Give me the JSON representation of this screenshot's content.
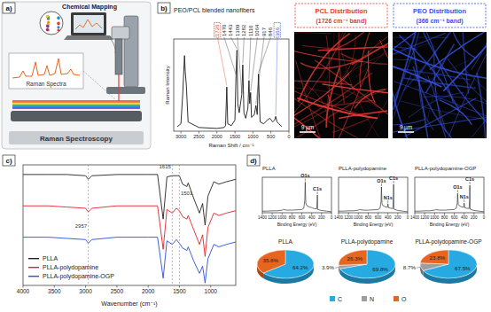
{
  "panel_labels": [
    "a)",
    "b)",
    "c)",
    "d)"
  ],
  "diagram": {
    "chemical_mapping": "Chemical Mapping",
    "raman_spectra": "Raman Spectra",
    "title": "Raman Spectroscopy"
  },
  "maps": [
    {
      "title": "PCL Distribution",
      "band": "(1726 cm⁻¹ band)",
      "color": "#e53935",
      "scale_bar": "9 µm"
    },
    {
      "title": "PEO Distribution",
      "band": "(366 cm⁻¹ band)",
      "color": "#3552e6",
      "scale_bar": "9 µm"
    }
  ],
  "chart_data": [
    {
      "type": "line",
      "title": "PEO/PCL blended nanofibers",
      "x_label": "Raman Shift / cm⁻¹",
      "y_label": "Raman Intensity",
      "xlim": [
        3200,
        0
      ],
      "xticks": [
        3000,
        2500,
        2000,
        1500,
        1000,
        500,
        0
      ],
      "ylim": [
        0,
        100
      ],
      "tick_labels": "x",
      "color": "#1a1a1a",
      "x": [
        3100,
        3000,
        2950,
        2900,
        2880,
        2850,
        2800,
        2500,
        2000,
        1800,
        1760,
        1726,
        1700,
        1600,
        1500,
        1470,
        1443,
        1420,
        1380,
        1309,
        1282,
        1250,
        1200,
        1140,
        1110,
        1090,
        1064,
        1040,
        960,
        917,
        880,
        846,
        800,
        700,
        600,
        530,
        450,
        400,
        366,
        330,
        280,
        200
      ],
      "values": [
        5,
        8,
        40,
        82,
        65,
        50,
        10,
        4,
        3,
        4,
        6,
        48,
        8,
        6,
        12,
        60,
        88,
        30,
        20,
        40,
        72,
        20,
        14,
        25,
        55,
        30,
        42,
        15,
        18,
        28,
        18,
        62,
        10,
        8,
        12,
        14,
        10,
        12,
        16,
        10,
        8,
        5
      ],
      "annotations": [
        {
          "x": 1726,
          "y": 48,
          "text": "1726",
          "color": "#e53935"
        },
        {
          "x": 1470,
          "y": 60,
          "text": "1470"
        },
        {
          "x": 1443,
          "y": 88,
          "text": "1443"
        },
        {
          "x": 1309,
          "y": 40,
          "text": "1309"
        },
        {
          "x": 1282,
          "y": 72,
          "text": "1282"
        },
        {
          "x": 1110,
          "y": 55,
          "text": "1110"
        },
        {
          "x": 1064,
          "y": 42,
          "text": "1064"
        },
        {
          "x": 917,
          "y": 28,
          "text": "917"
        },
        {
          "x": 846,
          "y": 62,
          "text": "846"
        },
        {
          "x": 366,
          "y": 16,
          "text": "366",
          "color": "#3552e6"
        }
      ]
    },
    {
      "type": "line",
      "x_label": "Wavenumber (cm⁻¹)",
      "xlim": [
        4000,
        600
      ],
      "xticks": [
        4000,
        3500,
        3000,
        2500,
        2000,
        1500,
        1000
      ],
      "ylim": [
        0,
        100
      ],
      "tick_labels": "x",
      "legend": "lower left",
      "x": [
        4000,
        3600,
        3300,
        3000,
        2957,
        2900,
        2500,
        2000,
        1850,
        1760,
        1700,
        1615,
        1550,
        1501,
        1450,
        1380,
        1360,
        1270,
        1180,
        1130,
        1090,
        1045,
        950,
        870,
        750,
        600
      ],
      "series": [
        {
          "name": "PLLA",
          "color": "#222222",
          "values": [
            92,
            92,
            92,
            91,
            88,
            91,
            92,
            92,
            92,
            55,
            90,
            91,
            91,
            91,
            84,
            82,
            85,
            72,
            60,
            68,
            50,
            74,
            86,
            84,
            86,
            88
          ]
        },
        {
          "name": "PLLA-polydopamine",
          "color": "#e0222a",
          "values": [
            66,
            66,
            65,
            64,
            61,
            64,
            66,
            66,
            66,
            30,
            63,
            60,
            64,
            62,
            57,
            55,
            58,
            46,
            34,
            42,
            24,
            48,
            60,
            58,
            60,
            62
          ]
        },
        {
          "name": "PLLA-polydopamine-OGP",
          "color": "#2b4fd8",
          "values": [
            40,
            40,
            39,
            38,
            35,
            38,
            40,
            40,
            40,
            6,
            37,
            34,
            38,
            35,
            31,
            29,
            32,
            20,
            10,
            16,
            2,
            22,
            34,
            32,
            34,
            36
          ]
        }
      ],
      "annotations": [
        {
          "x": 2957,
          "y": 48,
          "text": "2957"
        },
        {
          "x": 1615,
          "y": 97,
          "text": "1615"
        },
        {
          "x": 1501,
          "y": 75,
          "text": "1501"
        }
      ]
    },
    {
      "type": "line",
      "title": "PLLA",
      "x_label": "Binding Energy (eV)",
      "xlim": [
        1400,
        0
      ],
      "xticks": [
        1400,
        1200,
        1000,
        800,
        600,
        400,
        200,
        0
      ],
      "ylim": [
        0,
        110
      ],
      "tick_labels": "x",
      "color": "#333333",
      "x": [
        1400,
        1300,
        1200,
        1100,
        1000,
        980,
        900,
        800,
        700,
        600,
        560,
        540,
        532,
        520,
        500,
        450,
        410,
        400,
        390,
        350,
        300,
        290,
        285,
        280,
        200,
        100,
        0
      ],
      "values": [
        5,
        5,
        6,
        6,
        8,
        10,
        8,
        8,
        9,
        10,
        14,
        40,
        95,
        30,
        22,
        18,
        16,
        16,
        15,
        13,
        12,
        30,
        55,
        10,
        7,
        5,
        3
      ],
      "annotations": [
        {
          "x": 532,
          "y": 95,
          "text": "O1s"
        },
        {
          "x": 285,
          "y": 55,
          "text": "C1s"
        }
      ]
    },
    {
      "type": "line",
      "title": "PLLA-polydopamine",
      "x_label": "Binding Energy (eV)",
      "xlim": [
        1400,
        0
      ],
      "xticks": [
        1400,
        1200,
        1000,
        800,
        600,
        400,
        200,
        0
      ],
      "ylim": [
        0,
        110
      ],
      "tick_labels": "x",
      "color": "#333333",
      "x": [
        1400,
        1300,
        1200,
        1100,
        1000,
        980,
        900,
        800,
        700,
        600,
        560,
        540,
        532,
        520,
        500,
        450,
        410,
        400,
        390,
        350,
        300,
        290,
        285,
        280,
        200,
        100,
        0
      ],
      "values": [
        5,
        5,
        6,
        6,
        8,
        10,
        8,
        8,
        9,
        10,
        14,
        35,
        80,
        28,
        22,
        18,
        17,
        28,
        16,
        14,
        13,
        45,
        88,
        11,
        7,
        5,
        3
      ],
      "annotations": [
        {
          "x": 532,
          "y": 80,
          "text": "O1s"
        },
        {
          "x": 400,
          "y": 28,
          "text": "N1s"
        },
        {
          "x": 285,
          "y": 88,
          "text": "C1s"
        }
      ]
    },
    {
      "type": "line",
      "title": "PLLA-polydopamine-OGP",
      "x_label": "Binding Energy (eV)",
      "xlim": [
        1400,
        0
      ],
      "xticks": [
        1400,
        1200,
        1000,
        800,
        600,
        400,
        200,
        0
      ],
      "ylim": [
        0,
        110
      ],
      "tick_labels": "x",
      "color": "#333333",
      "x": [
        1400,
        1300,
        1200,
        1100,
        1000,
        980,
        900,
        800,
        700,
        600,
        560,
        540,
        532,
        520,
        500,
        450,
        410,
        400,
        390,
        350,
        300,
        290,
        285,
        280,
        200,
        100,
        0
      ],
      "values": [
        5,
        5,
        6,
        6,
        8,
        10,
        8,
        8,
        9,
        10,
        14,
        30,
        60,
        26,
        22,
        18,
        17,
        30,
        16,
        14,
        13,
        40,
        85,
        11,
        7,
        5,
        3
      ],
      "annotations": [
        {
          "x": 532,
          "y": 60,
          "text": "O1s"
        },
        {
          "x": 400,
          "y": 30,
          "text": "N1s"
        },
        {
          "x": 285,
          "y": 85,
          "text": "C1s"
        }
      ]
    },
    {
      "type": "pie",
      "title": "PLLA",
      "categories": [
        "C",
        "O"
      ],
      "values": [
        64.2,
        35.8
      ],
      "value_labels": [
        "64.2%",
        "35.8%"
      ],
      "colors": [
        "#27a9e1",
        "#e8651f"
      ],
      "data_labels": true
    },
    {
      "type": "pie",
      "title": "PLLA-polydopamine",
      "categories": [
        "C",
        "N",
        "O"
      ],
      "values": [
        69.8,
        3.9,
        26.3
      ],
      "value_labels": [
        "69.8%",
        "3.9%",
        "26.3%"
      ],
      "colors": [
        "#27a9e1",
        "#9e9e9e",
        "#e8651f"
      ],
      "data_labels": true
    },
    {
      "type": "pie",
      "title": "PLLA-polydopamine-OGP",
      "categories": [
        "C",
        "N",
        "O"
      ],
      "values": [
        67.5,
        8.7,
        23.8
      ],
      "value_labels": [
        "67.5%",
        "8.7%",
        "23.8%"
      ],
      "colors": [
        "#27a9e1",
        "#9e9e9e",
        "#e8651f"
      ],
      "data_labels": true,
      "legend": "bottom"
    }
  ]
}
